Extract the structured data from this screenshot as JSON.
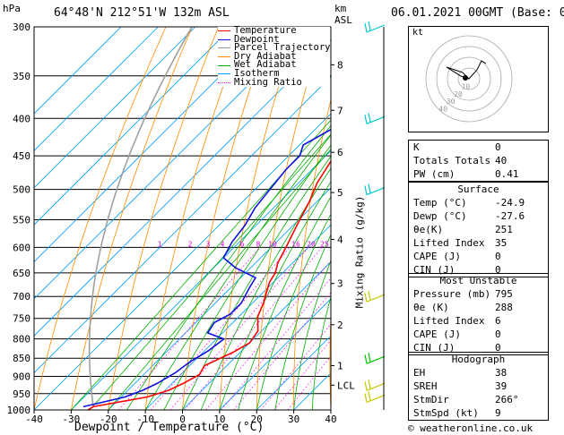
{
  "header": {
    "location": "64°48'N  212°51'W  132m  ASL",
    "datetime": "06.01.2021  00GMT  (Base: 00)",
    "hpa_label": "hPa",
    "km_label": "km",
    "asl_label": "ASL"
  },
  "chart_data": {
    "type": "line",
    "xlabel": "Dewpoint / Temperature (°C)",
    "ylabel": "Mixing Ratio (g/kg)",
    "xlim": [
      -40,
      40
    ],
    "pressure_ticks": [
      300,
      350,
      400,
      450,
      500,
      550,
      600,
      650,
      700,
      750,
      800,
      850,
      900,
      950,
      1000
    ],
    "temperature_ticks": [
      -40,
      -30,
      -20,
      -10,
      0,
      10,
      20,
      30,
      40
    ],
    "km_ticks": [
      {
        "label": "8",
        "p": 338
      },
      {
        "label": "7",
        "p": 390
      },
      {
        "label": "6",
        "p": 445
      },
      {
        "label": "5",
        "p": 505
      },
      {
        "label": "4",
        "p": 585
      },
      {
        "label": "3",
        "p": 672
      },
      {
        "label": "2",
        "p": 765
      },
      {
        "label": "1",
        "p": 870
      },
      {
        "label": "LCL",
        "p": 925
      }
    ],
    "mixing_ratio_labels": [
      "1",
      "2",
      "3",
      "4",
      "6",
      "8",
      "10",
      "16",
      "20",
      "25"
    ],
    "legend": [
      {
        "name": "Temperature",
        "color": "#ff0000"
      },
      {
        "name": "Dewpoint",
        "color": "#1010e0"
      },
      {
        "name": "Parcel Trajectory",
        "color": "#a0a0a0"
      },
      {
        "name": "Dry Adiabat",
        "color": "#ff8c00"
      },
      {
        "name": "Wet Adiabat",
        "color": "#00b000"
      },
      {
        "name": "Isotherm",
        "color": "#00a0ff"
      },
      {
        "name": "Mixing Ratio",
        "color": "#ff00ff"
      }
    ],
    "series": [
      {
        "name": "Temperature",
        "color": "#ff0000",
        "points": [
          [
            -25.5,
            1000
          ],
          [
            -24.9,
            990
          ],
          [
            -13,
            960
          ],
          [
            -9,
            940
          ],
          [
            -7,
            920
          ],
          [
            -5,
            895
          ],
          [
            -6,
            870
          ],
          [
            -2,
            835
          ],
          [
            0,
            810
          ],
          [
            -1,
            780
          ],
          [
            -5,
            745
          ],
          [
            -7,
            715
          ],
          [
            -11,
            670
          ],
          [
            -12,
            650
          ],
          [
            -14,
            630
          ],
          [
            -16,
            600
          ],
          [
            -19,
            560
          ],
          [
            -22,
            520
          ],
          [
            -25,
            490
          ],
          [
            -27,
            460
          ],
          [
            -30,
            420
          ],
          [
            -33,
            380
          ],
          [
            -37,
            340
          ],
          [
            -41,
            305
          ],
          [
            -43,
            300
          ]
        ]
      },
      {
        "name": "Dewpoint",
        "color": "#1010e0",
        "points": [
          [
            -27.6,
            990
          ],
          [
            -19,
            960
          ],
          [
            -16,
            940
          ],
          [
            -14,
            920
          ],
          [
            -12,
            890
          ],
          [
            -11,
            860
          ],
          [
            -9,
            830
          ],
          [
            -8,
            800
          ],
          [
            -14,
            785
          ],
          [
            -15,
            760
          ],
          [
            -13,
            740
          ],
          [
            -13,
            715
          ],
          [
            -15,
            680
          ],
          [
            -16,
            660
          ],
          [
            -24,
            640
          ],
          [
            -30,
            620
          ],
          [
            -32,
            590
          ],
          [
            -33,
            560
          ],
          [
            -35,
            530
          ],
          [
            -36,
            500
          ],
          [
            -37,
            470
          ],
          [
            -37,
            450
          ],
          [
            -39,
            435
          ],
          [
            -35,
            410
          ],
          [
            -38,
            380
          ],
          [
            -47,
            350
          ],
          [
            -45,
            320
          ],
          [
            -40,
            305
          ],
          [
            -41,
            300
          ]
        ]
      }
    ]
  },
  "winds": [
    {
      "p": 300,
      "color": "#00c8c8"
    },
    {
      "p": 400,
      "color": "#00c8c8"
    },
    {
      "p": 500,
      "color": "#00c8c8"
    },
    {
      "p": 700,
      "color": "#c8c800"
    },
    {
      "p": 850,
      "color": "#00c800"
    },
    {
      "p": 925,
      "color": "#c8c800"
    },
    {
      "p": 960,
      "color": "#c8c800"
    }
  ],
  "hodograph": {
    "unit_label": "kt",
    "ring_labels": [
      "10",
      "20",
      "30",
      "40"
    ]
  },
  "indices": [
    {
      "label": "K",
      "value": "0"
    },
    {
      "label": "Totals Totals",
      "value": "40"
    },
    {
      "label": "PW (cm)",
      "value": "0.41"
    }
  ],
  "surface": {
    "title": "Surface",
    "rows": [
      {
        "label": "Temp (°C)",
        "value": "-24.9"
      },
      {
        "label": "Dewp (°C)",
        "value": "-27.6"
      },
      {
        "label": "θe(K)",
        "value": "251"
      },
      {
        "label": "Lifted Index",
        "value": "35"
      },
      {
        "label": "CAPE (J)",
        "value": "0"
      },
      {
        "label": "CIN (J)",
        "value": "0"
      }
    ]
  },
  "most_unstable": {
    "title": "Most Unstable",
    "rows": [
      {
        "label": "Pressure (mb)",
        "value": "795"
      },
      {
        "label": "θe (K)",
        "value": "288"
      },
      {
        "label": "Lifted Index",
        "value": "6"
      },
      {
        "label": "CAPE (J)",
        "value": "0"
      },
      {
        "label": "CIN (J)",
        "value": "0"
      }
    ]
  },
  "hodograph_table": {
    "title": "Hodograph",
    "rows": [
      {
        "label": "EH",
        "value": "38"
      },
      {
        "label": "SREH",
        "value": "39"
      },
      {
        "label": "StmDir",
        "value": "266°"
      },
      {
        "label": "StmSpd (kt)",
        "value": "9"
      }
    ]
  },
  "footer": {
    "copyright": "© weatheronline.co.uk"
  }
}
